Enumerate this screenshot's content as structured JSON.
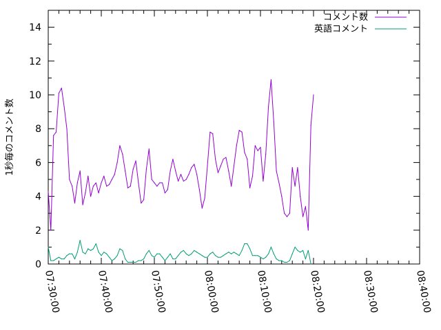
{
  "chart_data": {
    "type": "line",
    "title": "",
    "xlabel": "",
    "ylabel": "1秒毎のコメント数",
    "xlim": [
      "07:30:00",
      "08:40:00"
    ],
    "ylim": [
      0,
      15
    ],
    "x_ticks": [
      "07:30:00",
      "07:40:00",
      "07:50:00",
      "08:00:00",
      "08:10:00",
      "08:20:00",
      "08:30:00",
      "08:40:00"
    ],
    "y_ticks": [
      "0",
      "2",
      "4",
      "6",
      "8",
      "10",
      "12",
      "14"
    ],
    "grid": false,
    "legend_position": "top-right",
    "series": [
      {
        "name": "コメント数",
        "color": "#9400d3",
        "points": [
          [
            "07:30:00",
            4.3
          ],
          [
            "07:30:30",
            2.0
          ],
          [
            "07:31:00",
            7.6
          ],
          [
            "07:31:30",
            7.8
          ],
          [
            "07:32:00",
            10.1
          ],
          [
            "07:32:30",
            10.4
          ],
          [
            "07:33:00",
            9.3
          ],
          [
            "07:33:30",
            8.0
          ],
          [
            "07:34:00",
            5.0
          ],
          [
            "07:34:30",
            4.6
          ],
          [
            "07:35:00",
            3.6
          ],
          [
            "07:35:30",
            4.8
          ],
          [
            "07:36:00",
            5.5
          ],
          [
            "07:36:30",
            3.5
          ],
          [
            "07:37:00",
            4.2
          ],
          [
            "07:37:30",
            5.2
          ],
          [
            "07:38:00",
            4.0
          ],
          [
            "07:38:30",
            4.6
          ],
          [
            "07:39:00",
            4.8
          ],
          [
            "07:39:30",
            4.2
          ],
          [
            "07:40:00",
            4.8
          ],
          [
            "07:40:30",
            5.2
          ],
          [
            "07:41:00",
            4.6
          ],
          [
            "07:41:30",
            4.7
          ],
          [
            "07:42:00",
            5.0
          ],
          [
            "07:42:30",
            5.3
          ],
          [
            "07:43:00",
            6.0
          ],
          [
            "07:43:30",
            7.0
          ],
          [
            "07:44:00",
            6.5
          ],
          [
            "07:44:30",
            5.5
          ],
          [
            "07:45:00",
            4.5
          ],
          [
            "07:45:30",
            4.6
          ],
          [
            "07:46:00",
            5.6
          ],
          [
            "07:46:30",
            6.1
          ],
          [
            "07:47:00",
            4.8
          ],
          [
            "07:47:30",
            3.6
          ],
          [
            "07:48:00",
            3.8
          ],
          [
            "07:48:30",
            5.6
          ],
          [
            "07:49:00",
            6.8
          ],
          [
            "07:49:30",
            5.0
          ],
          [
            "07:50:00",
            4.8
          ],
          [
            "07:50:30",
            4.6
          ],
          [
            "07:51:00",
            4.8
          ],
          [
            "07:51:30",
            4.8
          ],
          [
            "07:52:00",
            4.2
          ],
          [
            "07:52:30",
            4.4
          ],
          [
            "07:53:00",
            5.5
          ],
          [
            "07:53:30",
            6.2
          ],
          [
            "07:54:00",
            5.5
          ],
          [
            "07:54:30",
            4.9
          ],
          [
            "07:55:00",
            5.3
          ],
          [
            "07:55:30",
            4.9
          ],
          [
            "07:56:00",
            5.0
          ],
          [
            "07:56:30",
            5.3
          ],
          [
            "07:57:00",
            5.7
          ],
          [
            "07:57:30",
            5.9
          ],
          [
            "07:58:00",
            5.3
          ],
          [
            "07:58:30",
            4.4
          ],
          [
            "07:59:00",
            3.3
          ],
          [
            "07:59:30",
            3.9
          ],
          [
            "08:00:00",
            5.8
          ],
          [
            "08:00:30",
            7.8
          ],
          [
            "08:01:00",
            7.7
          ],
          [
            "08:01:30",
            6.2
          ],
          [
            "08:02:00",
            5.4
          ],
          [
            "08:02:30",
            5.8
          ],
          [
            "08:03:00",
            6.2
          ],
          [
            "08:03:30",
            6.3
          ],
          [
            "08:04:00",
            5.5
          ],
          [
            "08:04:30",
            4.6
          ],
          [
            "08:05:00",
            5.8
          ],
          [
            "08:05:30",
            7.0
          ],
          [
            "08:06:00",
            7.9
          ],
          [
            "08:06:30",
            7.8
          ],
          [
            "08:07:00",
            6.6
          ],
          [
            "08:07:30",
            6.2
          ],
          [
            "08:08:00",
            4.5
          ],
          [
            "08:08:30",
            5.2
          ],
          [
            "08:09:00",
            7.0
          ],
          [
            "08:09:30",
            6.7
          ],
          [
            "08:10:00",
            6.9
          ],
          [
            "08:10:30",
            4.9
          ],
          [
            "08:11:00",
            6.5
          ],
          [
            "08:11:30",
            9.3
          ],
          [
            "08:12:00",
            10.9
          ],
          [
            "08:12:30",
            8.4
          ],
          [
            "08:13:00",
            5.5
          ],
          [
            "08:13:30",
            4.8
          ],
          [
            "08:14:00",
            4.0
          ],
          [
            "08:14:30",
            3.0
          ],
          [
            "08:15:00",
            2.8
          ],
          [
            "08:15:30",
            3.0
          ],
          [
            "08:16:00",
            5.7
          ],
          [
            "08:16:30",
            4.6
          ],
          [
            "08:17:00",
            5.7
          ],
          [
            "08:17:30",
            4.0
          ],
          [
            "08:18:00",
            2.8
          ],
          [
            "08:18:30",
            3.4
          ],
          [
            "08:19:00",
            2.0
          ],
          [
            "08:19:30",
            8.2
          ],
          [
            "08:20:00",
            10.0
          ]
        ]
      },
      {
        "name": "英語コメント",
        "color": "#009e73",
        "points": [
          [
            "07:30:00",
            1.0
          ],
          [
            "07:30:30",
            0.2
          ],
          [
            "07:31:00",
            0.2
          ],
          [
            "07:31:30",
            0.3
          ],
          [
            "07:32:00",
            0.4
          ],
          [
            "07:32:30",
            0.3
          ],
          [
            "07:33:00",
            0.3
          ],
          [
            "07:33:30",
            0.5
          ],
          [
            "07:34:00",
            0.6
          ],
          [
            "07:34:30",
            0.6
          ],
          [
            "07:35:00",
            0.3
          ],
          [
            "07:35:30",
            0.7
          ],
          [
            "07:36:00",
            1.4
          ],
          [
            "07:36:30",
            0.7
          ],
          [
            "07:37:00",
            0.6
          ],
          [
            "07:37:30",
            0.9
          ],
          [
            "07:38:00",
            0.8
          ],
          [
            "07:38:30",
            0.9
          ],
          [
            "07:39:00",
            1.2
          ],
          [
            "07:39:30",
            0.7
          ],
          [
            "07:40:00",
            0.5
          ],
          [
            "07:40:30",
            0.7
          ],
          [
            "07:41:00",
            0.6
          ],
          [
            "07:41:30",
            0.4
          ],
          [
            "07:42:00",
            0.2
          ],
          [
            "07:42:30",
            0.3
          ],
          [
            "07:43:00",
            0.5
          ],
          [
            "07:43:30",
            0.9
          ],
          [
            "07:44:00",
            0.8
          ],
          [
            "07:44:30",
            0.3
          ],
          [
            "07:45:00",
            0.1
          ],
          [
            "07:45:30",
            0.1
          ],
          [
            "07:46:00",
            0.1
          ],
          [
            "07:46:30",
            0.1
          ],
          [
            "07:47:00",
            0.2
          ],
          [
            "07:47:30",
            0.2
          ],
          [
            "07:48:00",
            0.3
          ],
          [
            "07:48:30",
            0.6
          ],
          [
            "07:49:00",
            0.8
          ],
          [
            "07:49:30",
            0.5
          ],
          [
            "07:50:00",
            0.4
          ],
          [
            "07:50:30",
            0.6
          ],
          [
            "07:51:00",
            0.6
          ],
          [
            "07:51:30",
            0.4
          ],
          [
            "07:52:00",
            0.2
          ],
          [
            "07:52:30",
            0.4
          ],
          [
            "07:53:00",
            0.6
          ],
          [
            "07:53:30",
            0.3
          ],
          [
            "07:54:00",
            0.3
          ],
          [
            "07:54:30",
            0.5
          ],
          [
            "07:55:00",
            0.7
          ],
          [
            "07:55:30",
            0.8
          ],
          [
            "07:56:00",
            0.6
          ],
          [
            "07:56:30",
            0.5
          ],
          [
            "07:57:00",
            0.6
          ],
          [
            "07:57:30",
            0.8
          ],
          [
            "07:58:00",
            0.7
          ],
          [
            "07:58:30",
            0.6
          ],
          [
            "07:59:00",
            0.5
          ],
          [
            "07:59:30",
            0.4
          ],
          [
            "08:00:00",
            0.4
          ],
          [
            "08:00:30",
            0.6
          ],
          [
            "08:01:00",
            0.7
          ],
          [
            "08:01:30",
            0.5
          ],
          [
            "08:02:00",
            0.4
          ],
          [
            "08:02:30",
            0.4
          ],
          [
            "08:03:00",
            0.5
          ],
          [
            "08:03:30",
            0.6
          ],
          [
            "08:04:00",
            0.7
          ],
          [
            "08:04:30",
            0.6
          ],
          [
            "08:05:00",
            0.7
          ],
          [
            "08:05:30",
            0.6
          ],
          [
            "08:06:00",
            0.5
          ],
          [
            "08:06:30",
            0.8
          ],
          [
            "08:07:00",
            1.2
          ],
          [
            "08:07:30",
            1.2
          ],
          [
            "08:08:00",
            0.9
          ],
          [
            "08:08:30",
            0.5
          ],
          [
            "08:09:00",
            0.5
          ],
          [
            "08:09:30",
            0.5
          ],
          [
            "08:10:00",
            0.4
          ],
          [
            "08:10:30",
            0.3
          ],
          [
            "08:11:00",
            0.4
          ],
          [
            "08:11:30",
            0.6
          ],
          [
            "08:12:00",
            1.0
          ],
          [
            "08:12:30",
            0.6
          ],
          [
            "08:13:00",
            0.3
          ],
          [
            "08:13:30",
            0.2
          ],
          [
            "08:14:00",
            0.2
          ],
          [
            "08:14:30",
            0.1
          ],
          [
            "08:15:00",
            0.1
          ],
          [
            "08:15:30",
            0.2
          ],
          [
            "08:16:00",
            0.6
          ],
          [
            "08:16:30",
            1.0
          ],
          [
            "08:17:00",
            0.8
          ],
          [
            "08:17:30",
            0.7
          ],
          [
            "08:18:00",
            0.8
          ],
          [
            "08:18:30",
            0.3
          ],
          [
            "08:19:00",
            0.8
          ],
          [
            "08:19:30",
            0.0
          ]
        ]
      }
    ]
  }
}
